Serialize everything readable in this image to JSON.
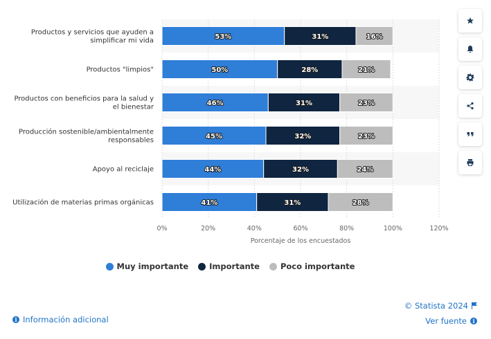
{
  "chart_data": {
    "type": "bar",
    "orientation": "horizontal",
    "stacked": true,
    "categories": [
      [
        "Productos y servicios que ayuden a",
        "simplificar mi vida"
      ],
      [
        "Productos \"limpios\""
      ],
      [
        "Productos con beneficios para la salud y",
        "el bienestar"
      ],
      [
        "Producción sostenible/ambientalmente",
        "responsables"
      ],
      [
        "Apoyo al reciclaje"
      ],
      [
        "Utilización de materias primas orgánicas"
      ]
    ],
    "series": [
      {
        "name": "Muy importante",
        "color": "#2f7ed8",
        "values": [
          53,
          50,
          46,
          45,
          44,
          41
        ]
      },
      {
        "name": "Importante",
        "color": "#0f2540",
        "values": [
          31,
          28,
          31,
          32,
          32,
          31
        ]
      },
      {
        "name": "Poco importante",
        "color": "#bdbdbd",
        "values": [
          16,
          21,
          23,
          23,
          24,
          28
        ]
      }
    ],
    "xlim": [
      0,
      120
    ],
    "xticks": [
      "0%",
      "20%",
      "40%",
      "60%",
      "80%",
      "100%",
      "120%"
    ],
    "xlabel": "Porcentaje de los encuestados",
    "value_suffix": "%",
    "legend_position": "bottom",
    "grid": true
  },
  "footer": {
    "additional_info": "Información adicional",
    "copyright": "© Statista 2024",
    "source": "Ver fuente",
    "info_glyph": "i"
  },
  "tools": [
    "star-icon",
    "bell-icon",
    "gear-icon",
    "share-icon",
    "quote-icon",
    "print-icon"
  ]
}
